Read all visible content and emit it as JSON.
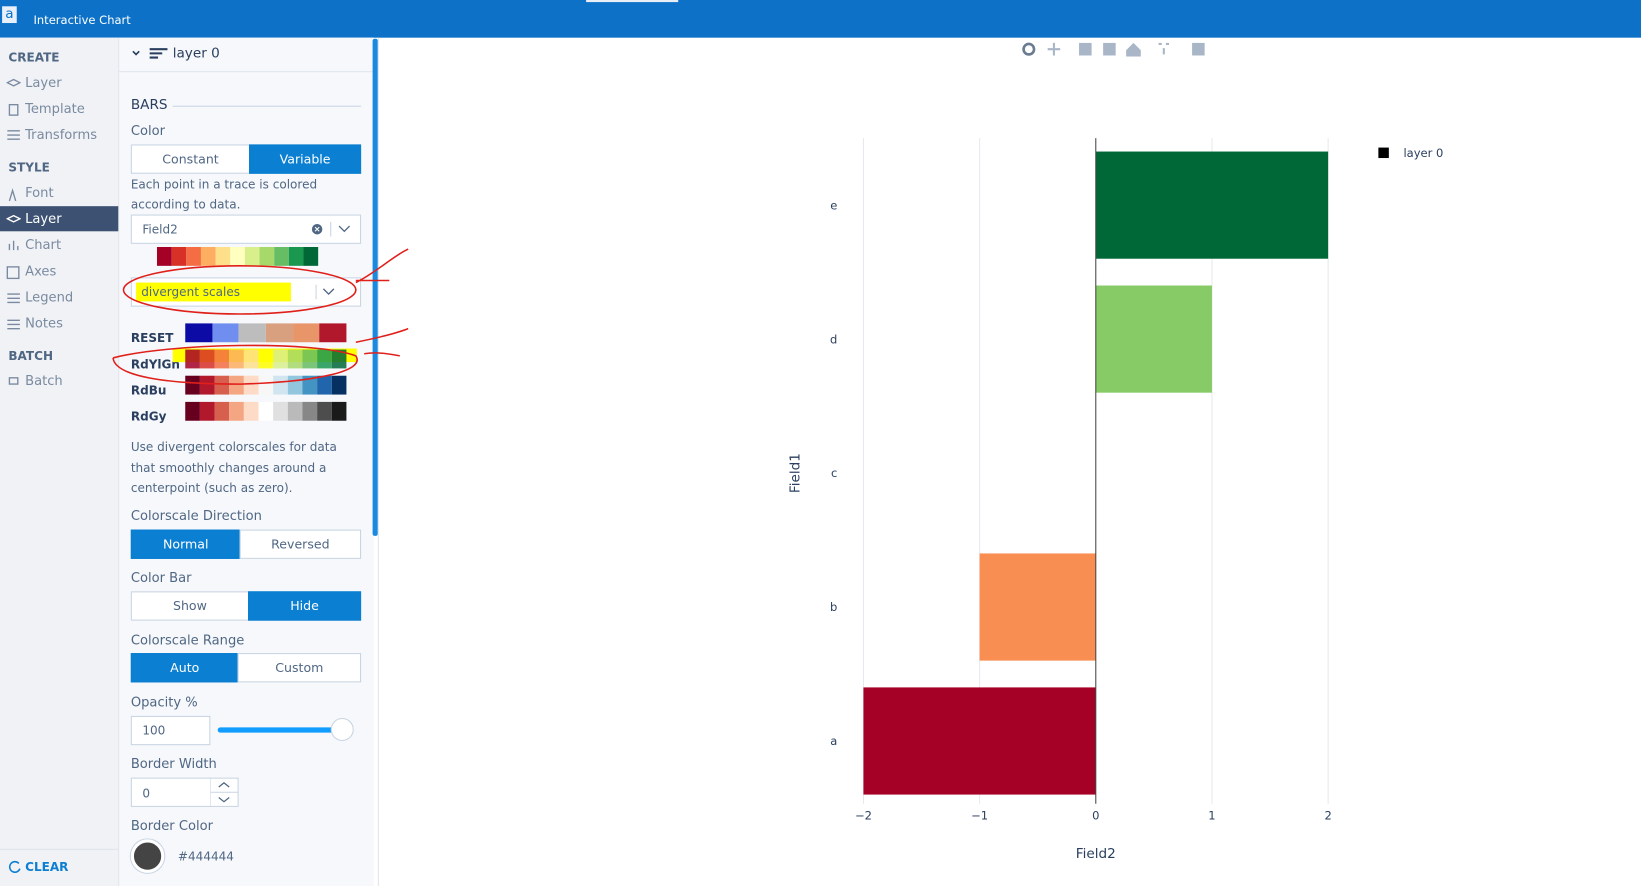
{
  "app": {
    "logo": "a",
    "title": "Interactive Chart"
  },
  "nav": {
    "sections": [
      {
        "title": "CREATE",
        "items": [
          "Layer",
          "Template",
          "Transforms"
        ]
      },
      {
        "title": "STYLE",
        "items": [
          "Font",
          "Layer",
          "Chart",
          "Axes",
          "Legend",
          "Notes"
        ]
      },
      {
        "title": "BATCH",
        "items": [
          "Batch"
        ]
      }
    ],
    "clear": "CLEAR"
  },
  "panel": {
    "layer": "layer 0",
    "section": "BARS",
    "color_label": "Color",
    "color_options": [
      "Constant",
      "Variable"
    ],
    "color_help": [
      "Each point in a trace is colored",
      "according to data."
    ],
    "field": "Field2",
    "scale_category": "divergent scales",
    "scales": [
      "RESET",
      "RdYlGn",
      "RdBu",
      "RdGy"
    ],
    "scale_help": [
      "Use divergent colorscales for data",
      "that smoothly changes around a",
      "centerpoint (such as zero)."
    ],
    "direction_label": "Colorscale Direction",
    "direction_options": [
      "Normal",
      "Reversed"
    ],
    "colorbar_label": "Color Bar",
    "colorbar_options": [
      "Show",
      "Hide"
    ],
    "range_label": "Colorscale Range",
    "range_options": [
      "Auto",
      "Custom"
    ],
    "opacity_label": "Opacity %",
    "opacity": 100,
    "border_width_label": "Border Width",
    "border_width": 0,
    "border_color_label": "Border Color",
    "border_color": "#444444"
  },
  "chart_data": {
    "type": "bar",
    "orientation": "horizontal",
    "categories": [
      "a",
      "b",
      "c",
      "d",
      "e"
    ],
    "values": [
      -2,
      -1,
      0,
      1,
      2
    ],
    "colors": [
      "#a50026",
      "#f98e52",
      "#ffffbf",
      "#86cb66",
      "#006837"
    ],
    "series_name": "layer 0",
    "legend_color": "#000000",
    "xlim": [
      -2,
      2
    ],
    "xticks": [
      {
        "value": -2,
        "label": "−2"
      },
      {
        "value": -1,
        "label": "−1"
      },
      0,
      1,
      2
    ],
    "xlabel": "Field2",
    "ylabel": "Field1",
    "grid": true
  }
}
